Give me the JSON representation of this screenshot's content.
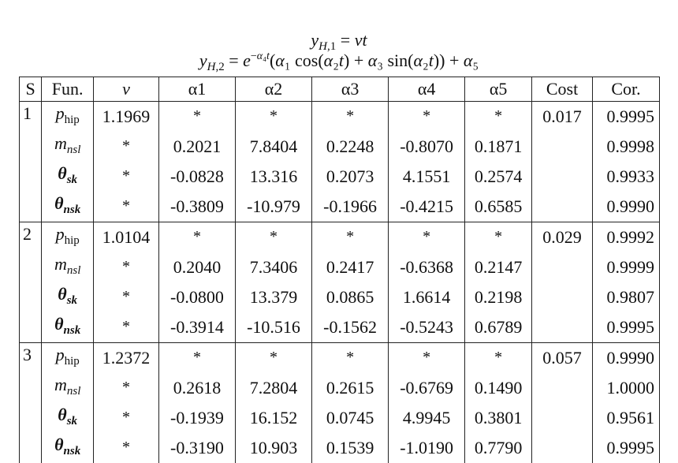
{
  "equations": {
    "line1": "y_{H,1} = vt",
    "line2": "y_{H,2} = e^{−α4 t}(α1 cos(α2 t) + α3 sin(α2 t)) + α5"
  },
  "table": {
    "headers": [
      "S",
      "Fun.",
      "v",
      "α1",
      "α2",
      "α3",
      "α4",
      "α5",
      "Cost",
      "Cor."
    ],
    "groups": [
      {
        "s": "1",
        "cost": "0.017",
        "rows": [
          {
            "fun": "p_hip",
            "v": "1.1969",
            "a1": "*",
            "a2": "*",
            "a3": "*",
            "a4": "*",
            "a5": "*",
            "cor": "0.9995"
          },
          {
            "fun": "m_nsl",
            "v": "*",
            "a1": "0.2021",
            "a2": "7.8404",
            "a3": "0.2248",
            "a4": "-0.8070",
            "a5": "0.1871",
            "cor": "0.9998"
          },
          {
            "fun": "θ_sk",
            "v": "*",
            "a1": "-0.0828",
            "a2": "13.316",
            "a3": "0.2073",
            "a4": "4.1551",
            "a5": "0.2574",
            "cor": "0.9933"
          },
          {
            "fun": "θ_nsk",
            "v": "*",
            "a1": "-0.3809",
            "a2": "-10.979",
            "a3": "-0.1966",
            "a4": "-0.4215",
            "a5": "0.6585",
            "cor": "0.9990"
          }
        ]
      },
      {
        "s": "2",
        "cost": "0.029",
        "rows": [
          {
            "fun": "p_hip",
            "v": "1.0104",
            "a1": "*",
            "a2": "*",
            "a3": "*",
            "a4": "*",
            "a5": "*",
            "cor": "0.9992"
          },
          {
            "fun": "m_nsl",
            "v": "*",
            "a1": "0.2040",
            "a2": "7.3406",
            "a3": "0.2417",
            "a4": "-0.6368",
            "a5": "0.2147",
            "cor": "0.9999"
          },
          {
            "fun": "θ_sk",
            "v": "*",
            "a1": "-0.0800",
            "a2": "13.379",
            "a3": "0.0865",
            "a4": "1.6614",
            "a5": "0.2198",
            "cor": "0.9807"
          },
          {
            "fun": "θ_nsk",
            "v": "*",
            "a1": "-0.3914",
            "a2": "-10.516",
            "a3": "-0.1562",
            "a4": "-0.5243",
            "a5": "0.6789",
            "cor": "0.9995"
          }
        ]
      },
      {
        "s": "3",
        "cost": "0.057",
        "rows": [
          {
            "fun": "p_hip",
            "v": "1.2372",
            "a1": "*",
            "a2": "*",
            "a3": "*",
            "a4": "*",
            "a5": "*",
            "cor": "0.9990"
          },
          {
            "fun": "m_nsl",
            "v": "*",
            "a1": "0.2618",
            "a2": "7.2804",
            "a3": "0.2615",
            "a4": "-0.6769",
            "a5": "0.1490",
            "cor": "1.0000"
          },
          {
            "fun": "θ_sk",
            "v": "*",
            "a1": "-0.1939",
            "a2": "16.152",
            "a3": "0.0745",
            "a4": "4.9945",
            "a5": "0.3801",
            "cor": "0.9561"
          },
          {
            "fun": "θ_nsk",
            "v": "*",
            "a1": "-0.3190",
            "a2": "10.903",
            "a3": "0.1539",
            "a4": "-1.0190",
            "a5": "0.7790",
            "cor": "0.9995"
          }
        ]
      }
    ]
  }
}
